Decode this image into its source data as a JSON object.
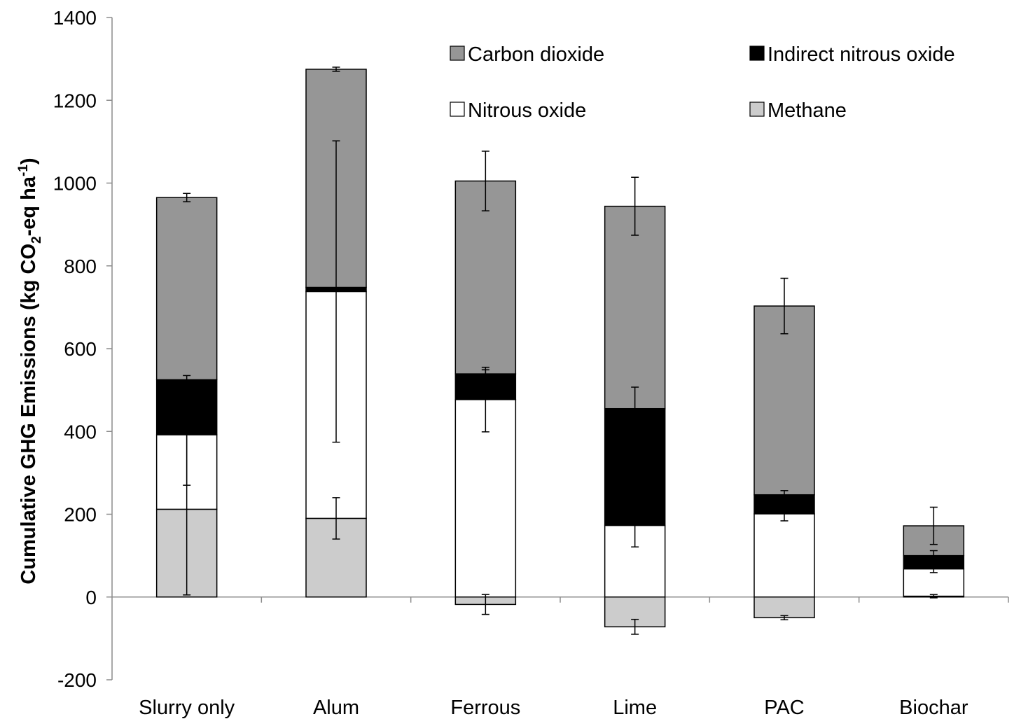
{
  "chart_data": {
    "type": "bar",
    "stacked": true,
    "categories": [
      "Slurry only",
      "Alum",
      "Ferrous",
      "Lime",
      "PAC",
      "Biochar"
    ],
    "ylabel": {
      "main": "Cumulative GHG Emissions (kg CO",
      "sub": "2",
      "mid": "-eq ha",
      "sup": "-1",
      "end": ")"
    },
    "ylim": [
      -200,
      1400
    ],
    "yticks": [
      -200,
      0,
      200,
      400,
      600,
      800,
      1000,
      1200,
      1400
    ],
    "ytick_labels": [
      "-200",
      "0",
      "200",
      "400",
      "600",
      "800",
      "1000",
      "1200",
      "1400"
    ],
    "grid": false,
    "legend_position": "top-right",
    "series": [
      {
        "name": "Methane",
        "color": "#cccccc",
        "values": [
          212,
          190,
          -18,
          -72,
          -50,
          2
        ],
        "error": [
          207,
          50,
          24,
          18,
          5,
          4
        ]
      },
      {
        "name": "Nitrous oxide",
        "color": "#ffffff",
        "values": [
          180,
          548,
          477,
          173,
          201,
          66
        ],
        "error": [
          122,
          364,
          78,
          52,
          17,
          9
        ]
      },
      {
        "name": "Indirect nitrous oxide",
        "color": "#000000",
        "values": [
          133,
          10,
          62,
          282,
          46,
          32
        ],
        "error": [
          10,
          0,
          10,
          52,
          10,
          12
        ]
      },
      {
        "name": "Carbon dioxide",
        "color": "#969696",
        "values": [
          440,
          527,
          466,
          489,
          456,
          72
        ],
        "error": [
          10,
          5,
          72,
          70,
          67,
          45
        ]
      }
    ],
    "legend": [
      {
        "series": "Carbon dioxide",
        "label": "Carbon dioxide"
      },
      {
        "series": "Indirect nitrous oxide",
        "label": "Indirect nitrous oxide"
      },
      {
        "series": "Nitrous oxide",
        "label": "Nitrous oxide"
      },
      {
        "series": "Methane",
        "label": "Methane"
      }
    ]
  }
}
